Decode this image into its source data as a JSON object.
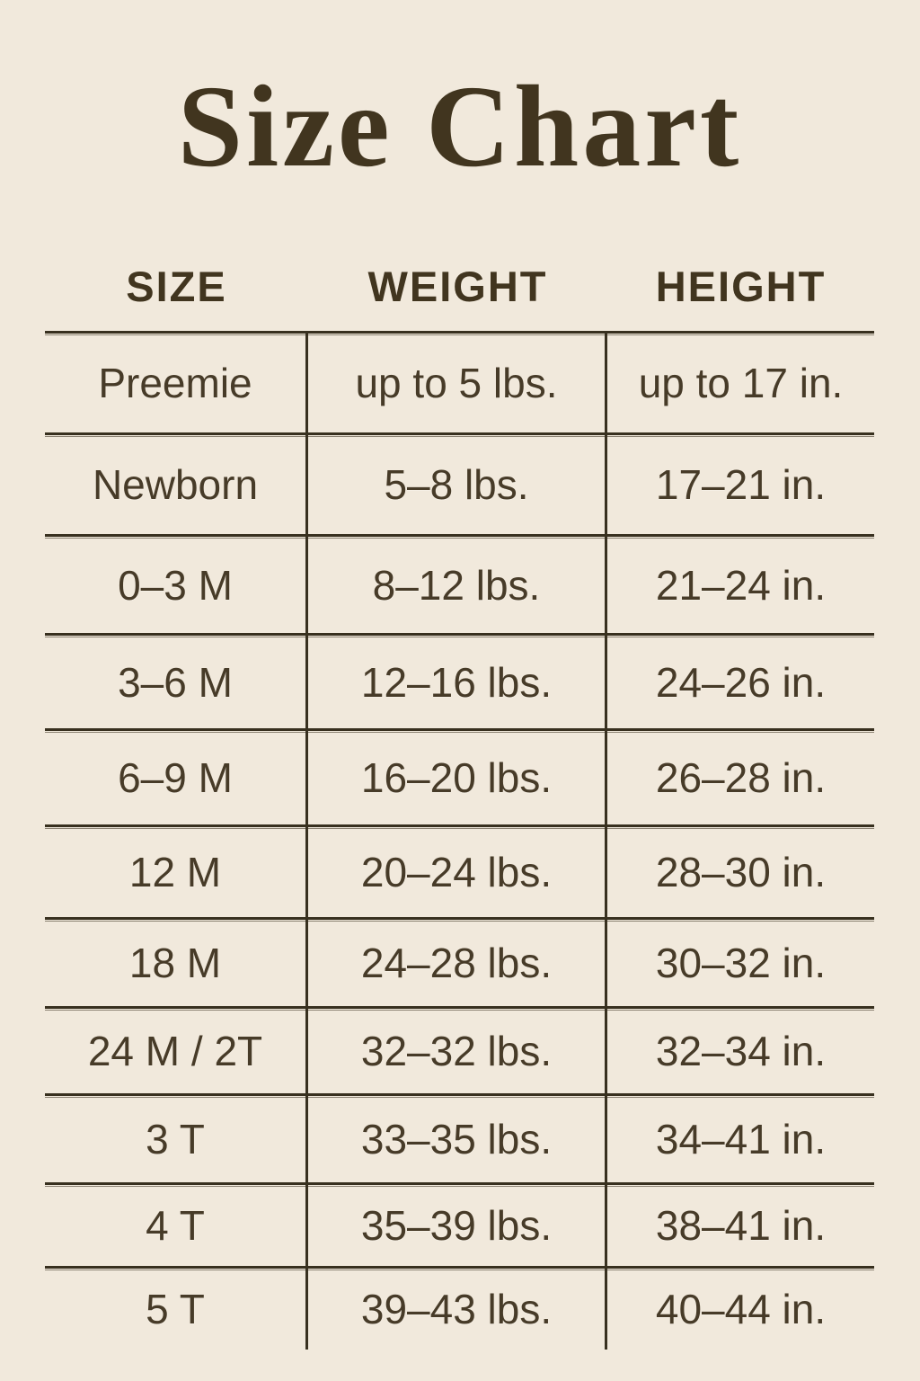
{
  "page": {
    "title": "Size Chart"
  },
  "colors": {
    "background": "#f1e9dc",
    "text": "#473b28",
    "title": "#41351f",
    "line": "#38301f"
  },
  "table": {
    "headers": [
      "SIZE",
      "WEIGHT",
      "HEIGHT"
    ],
    "rows": [
      {
        "size": "Preemie",
        "weight": "up to 5 lbs.",
        "height": "up to 17 in."
      },
      {
        "size": "Newborn",
        "weight": "5–8 lbs.",
        "height": "17–21 in."
      },
      {
        "size": "0–3 M",
        "weight": "8–12 lbs.",
        "height": "21–24 in."
      },
      {
        "size": "3–6 M",
        "weight": "12–16 lbs.",
        "height": "24–26 in."
      },
      {
        "size": "6–9 M",
        "weight": "16–20 lbs.",
        "height": "26–28 in."
      },
      {
        "size": "12 M",
        "weight": "20–24 lbs.",
        "height": "28–30 in."
      },
      {
        "size": "18 M",
        "weight": "24–28 lbs.",
        "height": "30–32 in."
      },
      {
        "size": "24 M / 2T",
        "weight": "32–32 lbs.",
        "height": "32–34 in."
      },
      {
        "size": "3 T",
        "weight": "33–35 lbs.",
        "height": "34–41 in."
      },
      {
        "size": "4 T",
        "weight": "35–39 lbs.",
        "height": "38–41 in."
      },
      {
        "size": "5 T",
        "weight": "39–43 lbs.",
        "height": "40–44 in."
      }
    ]
  }
}
